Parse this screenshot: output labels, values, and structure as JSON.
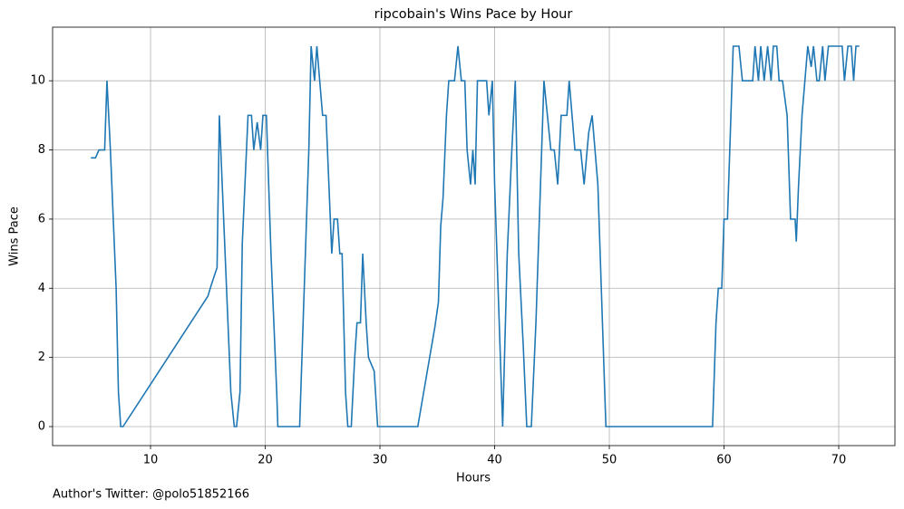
{
  "chart_data": {
    "type": "line",
    "title": "ripcobain's Wins Pace by Hour",
    "x_label": "Hours",
    "y_label": "Wins Pace",
    "annotation": "Author's Twitter: @polo51852166",
    "color": "#1f77b4",
    "grid": true,
    "xlim": [
      1.46,
      74.9
    ],
    "ylim": [
      -0.55,
      11.55
    ],
    "xticks": [
      10,
      20,
      30,
      40,
      50,
      60,
      70
    ],
    "yticks": [
      0,
      2,
      4,
      6,
      8,
      10
    ],
    "x": [
      4.8,
      5.2,
      5.5,
      6,
      6.2,
      6.5,
      7,
      7.2,
      7.4,
      7.6,
      15,
      15.3,
      15.8,
      16,
      16.5,
      17,
      17.3,
      17.5,
      17.8,
      18,
      18.5,
      18.8,
      19,
      19.3,
      19.6,
      19.8,
      20.1,
      20.5,
      21,
      21.1,
      23,
      23.3,
      23.5,
      23.8,
      24,
      24.3,
      24.5,
      25,
      25.3,
      25.8,
      26,
      26.3,
      26.5,
      26.7,
      27,
      27.2,
      27.5,
      27.8,
      28,
      28.3,
      28.5,
      28.8,
      29,
      29.5,
      29.8,
      33.3,
      34.8,
      35.1,
      35.3,
      35.5,
      35.8,
      36,
      36.5,
      36.8,
      37.1,
      37.4,
      37.6,
      37.9,
      38.1,
      38.3,
      38.5,
      39.3,
      39.5,
      39.8,
      40,
      40.4,
      40.7,
      41.1,
      41.5,
      41.8,
      42.1,
      42.5,
      42.8,
      43.2,
      43.6,
      44,
      44.3,
      44.6,
      44.9,
      45.2,
      45.5,
      45.8,
      46.3,
      46.5,
      47,
      47.5,
      47.8,
      48.2,
      48.5,
      49,
      49.5,
      49.7,
      59,
      59.3,
      59.5,
      59.8,
      60,
      60.3,
      60.8,
      61.3,
      61.6,
      62.5,
      62.7,
      63,
      63.2,
      63.5,
      63.8,
      64.1,
      64.3,
      64.6,
      64.8,
      65.1,
      65.5,
      65.8,
      66.2,
      66.3,
      66.5,
      66.8,
      67.3,
      67.6,
      67.8,
      68.1,
      68.3,
      68.6,
      68.8,
      69.1,
      70.3,
      70.5,
      70.8,
      71.1,
      71.3,
      71.5,
      71.8
    ],
    "values": [
      7.77,
      7.77,
      8,
      8,
      10,
      8,
      4,
      1,
      0,
      0,
      3.77,
      4.1,
      4.6,
      9,
      5,
      1,
      0,
      0,
      1,
      5.3,
      9,
      9,
      8,
      8.8,
      8,
      9,
      9,
      5,
      1,
      0,
      0,
      3,
      5,
      8,
      11,
      10,
      11,
      9,
      9,
      5,
      6,
      6,
      5,
      5,
      1,
      0,
      0,
      2,
      3,
      3,
      5,
      3,
      2,
      1.6,
      0,
      0,
      2.9,
      3.6,
      5.8,
      6.6,
      9,
      10,
      10,
      11,
      10,
      10,
      8,
      7,
      8,
      7,
      10,
      10,
      9,
      10,
      7,
      3,
      0,
      5,
      8,
      10,
      5,
      2.3,
      0,
      0,
      3,
      7,
      10,
      9,
      8,
      8,
      7,
      9,
      9,
      10,
      8,
      8,
      7,
      8.5,
      9,
      7,
      2,
      0,
      0,
      3,
      4,
      4,
      6,
      6,
      11,
      11,
      10,
      10,
      11,
      10,
      11,
      10,
      11,
      10,
      11,
      11,
      10,
      10,
      9,
      6,
      6,
      5.35,
      7,
      9,
      11,
      10.4,
      11,
      10,
      10,
      11,
      10,
      11,
      11,
      10,
      11,
      11,
      10,
      11,
      11
    ]
  }
}
